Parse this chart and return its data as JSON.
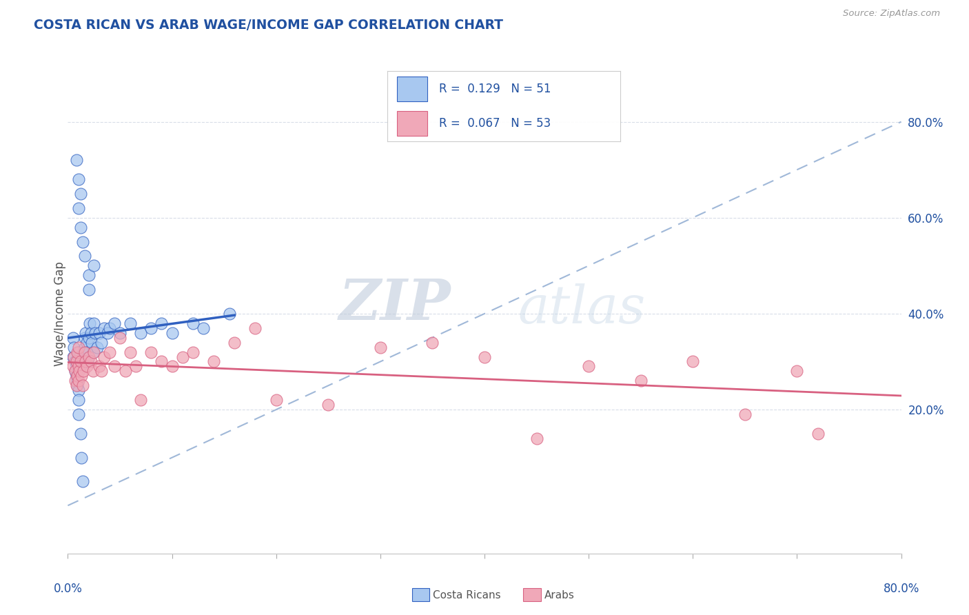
{
  "title": "COSTA RICAN VS ARAB WAGE/INCOME GAP CORRELATION CHART",
  "source": "Source: ZipAtlas.com",
  "ylabel": "Wage/Income Gap",
  "xlim": [
    0.0,
    0.8
  ],
  "ylim": [
    -0.1,
    0.9
  ],
  "ytick_positions": [
    0.0,
    0.2,
    0.4,
    0.6,
    0.8
  ],
  "ytick_labels": [
    "",
    "20.0%",
    "40.0%",
    "60.0%",
    "80.0%"
  ],
  "legend_label1": "Costa Ricans",
  "legend_label2": "Arabs",
  "color_blue": "#a8c8f0",
  "color_pink": "#f0a8b8",
  "color_blue_line": "#3060c0",
  "color_pink_line": "#d86080",
  "color_dashed": "#a0b8d8",
  "watermark": "ZIPatlas",
  "title_color": "#2050a0",
  "label_color": "#2050a0",
  "grid_color": "#d8dde8",
  "cr_x": [
    0.005,
    0.005,
    0.006,
    0.007,
    0.007,
    0.008,
    0.008,
    0.009,
    0.009,
    0.01,
    0.01,
    0.01,
    0.01,
    0.01,
    0.01,
    0.011,
    0.012,
    0.012,
    0.013,
    0.014,
    0.015,
    0.015,
    0.016,
    0.016,
    0.017,
    0.018,
    0.018,
    0.019,
    0.02,
    0.021,
    0.022,
    0.023,
    0.024,
    0.025,
    0.026,
    0.028,
    0.03,
    0.032,
    0.035,
    0.038,
    0.04,
    0.045,
    0.05,
    0.06,
    0.07,
    0.08,
    0.09,
    0.1,
    0.12,
    0.13,
    0.155
  ],
  "cr_y": [
    0.35,
    0.31,
    0.33,
    0.3,
    0.28,
    0.29,
    0.27,
    0.26,
    0.25,
    0.32,
    0.3,
    0.28,
    0.24,
    0.22,
    0.19,
    0.31,
    0.29,
    0.15,
    0.1,
    0.05,
    0.32,
    0.3,
    0.35,
    0.33,
    0.36,
    0.34,
    0.32,
    0.3,
    0.35,
    0.38,
    0.36,
    0.34,
    0.32,
    0.38,
    0.36,
    0.33,
    0.36,
    0.34,
    0.37,
    0.36,
    0.37,
    0.38,
    0.36,
    0.38,
    0.36,
    0.37,
    0.38,
    0.36,
    0.38,
    0.37,
    0.4
  ],
  "arab_x": [
    0.005,
    0.006,
    0.007,
    0.007,
    0.008,
    0.008,
    0.009,
    0.009,
    0.01,
    0.01,
    0.01,
    0.011,
    0.012,
    0.013,
    0.014,
    0.015,
    0.016,
    0.017,
    0.018,
    0.02,
    0.022,
    0.024,
    0.025,
    0.03,
    0.032,
    0.035,
    0.04,
    0.045,
    0.05,
    0.055,
    0.06,
    0.065,
    0.07,
    0.08,
    0.09,
    0.1,
    0.11,
    0.12,
    0.14,
    0.16,
    0.18,
    0.2,
    0.25,
    0.3,
    0.35,
    0.4,
    0.45,
    0.5,
    0.55,
    0.6,
    0.65,
    0.7,
    0.72
  ],
  "arab_y": [
    0.29,
    0.31,
    0.28,
    0.26,
    0.3,
    0.25,
    0.32,
    0.27,
    0.33,
    0.29,
    0.26,
    0.28,
    0.3,
    0.27,
    0.25,
    0.28,
    0.32,
    0.3,
    0.29,
    0.31,
    0.3,
    0.28,
    0.32,
    0.29,
    0.28,
    0.31,
    0.32,
    0.29,
    0.35,
    0.28,
    0.32,
    0.29,
    0.22,
    0.32,
    0.3,
    0.29,
    0.31,
    0.32,
    0.3,
    0.34,
    0.37,
    0.22,
    0.21,
    0.33,
    0.34,
    0.31,
    0.14,
    0.29,
    0.26,
    0.3,
    0.19,
    0.28,
    0.15
  ],
  "cr_outliers_x": [
    0.008,
    0.01,
    0.01,
    0.012,
    0.012,
    0.014,
    0.016,
    0.02,
    0.02,
    0.025
  ],
  "cr_outliers_y": [
    0.72,
    0.68,
    0.62,
    0.65,
    0.58,
    0.55,
    0.52,
    0.48,
    0.45,
    0.5
  ]
}
